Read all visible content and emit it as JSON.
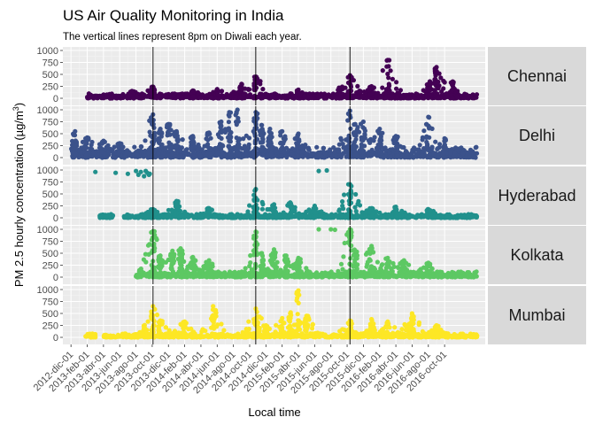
{
  "chart_data": {
    "type": "scatter",
    "title": "US Air Quality Monitoring in India",
    "subtitle": "The vertical lines represent 8pm on Diwali each year.",
    "xlabel": "Local time",
    "ylabel_main": "PM 2.5 hourly concentration (µg/m",
    "ylabel_sup": "3",
    "ylabel_close": ")",
    "y_ticks": [
      "0",
      "250",
      "500",
      "750",
      "1000"
    ],
    "y_tick_values": [
      0,
      250,
      500,
      750,
      1000
    ],
    "ylim": [
      0,
      1000
    ],
    "x_ticks": [
      "2012-dic-01",
      "2013-feb-01",
      "2013-abr-01",
      "2013-jun-01",
      "2013-ago-01",
      "2013-oct-01",
      "2013-dic-01",
      "2014-feb-01",
      "2014-abr-01",
      "2014-jun-01",
      "2014-ago-01",
      "2014-oct-01",
      "2014-dic-01",
      "2015-feb-01",
      "2015-abr-01",
      "2015-jun-01",
      "2015-ago-01",
      "2015-oct-01",
      "2015-dic-01",
      "2016-feb-01",
      "2016-abr-01",
      "2016-jun-01",
      "2016-ago-01",
      "2016-oct-01"
    ],
    "diwali_months": [
      10.1,
      22.75,
      34.35
    ],
    "series": [
      {
        "name": "Chennai",
        "color": "#440154",
        "start": 2.0,
        "end": 50.0,
        "base": 55,
        "noise": 45,
        "peaks": [
          [
            7.5,
            150
          ],
          [
            10.1,
            240
          ],
          [
            15,
            160
          ],
          [
            18,
            190
          ],
          [
            21,
            300
          ],
          [
            22.75,
            450
          ],
          [
            28,
            180
          ],
          [
            33,
            220
          ],
          [
            34.35,
            480
          ],
          [
            37,
            250
          ],
          [
            39,
            800
          ],
          [
            44,
            300
          ],
          [
            45,
            650
          ],
          [
            47,
            350
          ]
        ],
        "gaps": []
      },
      {
        "name": "Delhi",
        "color": "#3b528b",
        "start": 0.0,
        "end": 50.0,
        "base": 110,
        "noise": 110,
        "peaks": [
          [
            0.5,
            550
          ],
          [
            2,
            420
          ],
          [
            4,
            350
          ],
          [
            6,
            300
          ],
          [
            10.1,
            900
          ],
          [
            11,
            600
          ],
          [
            12,
            700
          ],
          [
            13,
            550
          ],
          [
            15,
            450
          ],
          [
            17,
            520
          ],
          [
            18.5,
            750
          ],
          [
            19.5,
            950
          ],
          [
            20.5,
            1000
          ],
          [
            22.75,
            950
          ],
          [
            23.5,
            680
          ],
          [
            24.5,
            600
          ],
          [
            26,
            550
          ],
          [
            28,
            500
          ],
          [
            34.35,
            980
          ],
          [
            35,
            700
          ],
          [
            36,
            750
          ],
          [
            38,
            600
          ],
          [
            40,
            450
          ],
          [
            44,
            850
          ],
          [
            46,
            400
          ]
        ],
        "gaps": []
      },
      {
        "name": "Hyderabad",
        "color": "#21908c",
        "start": 3.5,
        "end": 50.0,
        "base": 40,
        "noise": 35,
        "peaks": [
          [
            10.1,
            180
          ],
          [
            13,
            350
          ],
          [
            17,
            200
          ],
          [
            22.75,
            600
          ],
          [
            25,
            280
          ],
          [
            27,
            320
          ],
          [
            30,
            250
          ],
          [
            34.35,
            700
          ],
          [
            37,
            200
          ],
          [
            40,
            230
          ],
          [
            44,
            180
          ]
        ],
        "gaps": [
          [
            5.2,
            6.5
          ]
        ],
        "extra_points": [
          [
            3.0,
            960
          ],
          [
            5.5,
            940
          ],
          [
            7.0,
            920
          ],
          [
            8.0,
            980
          ],
          [
            8.3,
            900
          ],
          [
            8.6,
            960
          ],
          [
            9.0,
            870
          ],
          [
            9.2,
            980
          ],
          [
            9.4,
            940
          ],
          [
            9.6,
            900
          ],
          [
            9.7,
            920
          ],
          [
            30.5,
            980
          ],
          [
            31.5,
            990
          ]
        ]
      },
      {
        "name": "Kolkata",
        "color": "#5dc863",
        "start": 8.0,
        "end": 50.0,
        "base": 60,
        "noise": 55,
        "peaks": [
          [
            10.1,
            960
          ],
          [
            11,
            450
          ],
          [
            12.5,
            550
          ],
          [
            13.5,
            600
          ],
          [
            15,
            420
          ],
          [
            17,
            350
          ],
          [
            22.75,
            950
          ],
          [
            23.5,
            500
          ],
          [
            25,
            580
          ],
          [
            26.5,
            450
          ],
          [
            28,
            400
          ],
          [
            34.35,
            1000
          ],
          [
            35,
            550
          ],
          [
            37,
            650
          ],
          [
            39,
            400
          ],
          [
            41,
            350
          ],
          [
            44,
            300
          ]
        ],
        "gaps": [],
        "extra_points": [
          [
            30.5,
            1000
          ],
          [
            32,
            1000
          ],
          [
            32.5,
            990
          ]
        ]
      },
      {
        "name": "Mumbai",
        "color": "#fde725",
        "start": 1.8,
        "end": 50.0,
        "base": 40,
        "noise": 40,
        "peaks": [
          [
            10.1,
            650
          ],
          [
            11,
            350
          ],
          [
            14,
            330
          ],
          [
            17.5,
            650
          ],
          [
            22.75,
            600
          ],
          [
            24,
            250
          ],
          [
            26,
            400
          ],
          [
            27,
            500
          ],
          [
            28,
            980
          ],
          [
            29,
            450
          ],
          [
            34.35,
            350
          ],
          [
            37,
            380
          ],
          [
            39,
            330
          ],
          [
            42,
            500
          ],
          [
            45,
            250
          ]
        ],
        "gaps": [
          [
            3.0,
            4.0
          ]
        ]
      }
    ]
  }
}
